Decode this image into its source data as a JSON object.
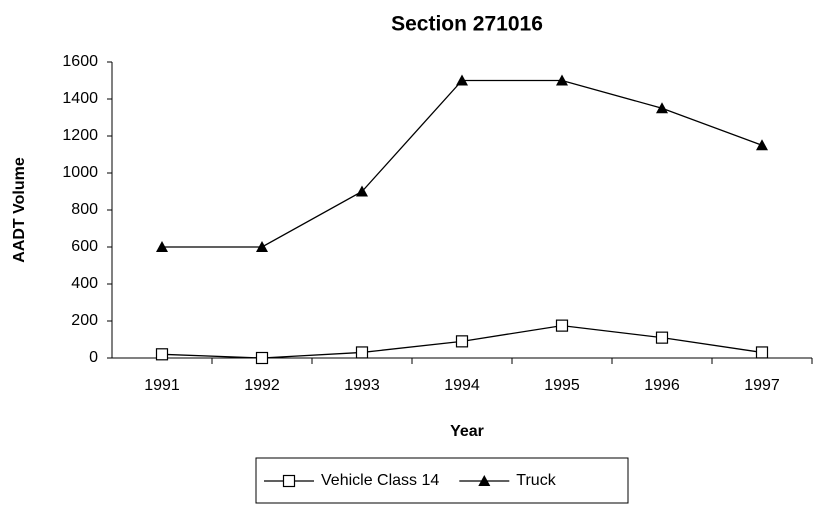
{
  "chart_data": {
    "type": "line",
    "title": "Section 271016",
    "x_label": "Year",
    "y_label": "AADT Volume",
    "categories": [
      "1991",
      "1992",
      "1993",
      "1994",
      "1995",
      "1996",
      "1997"
    ],
    "series": [
      {
        "name": "Vehicle Class 14",
        "color": "#000000",
        "marker": "square",
        "values": [
          20,
          0,
          30,
          90,
          175,
          110,
          30
        ]
      },
      {
        "name": "Truck",
        "color": "#000000",
        "marker": "triangle",
        "values": [
          600,
          600,
          900,
          1500,
          1500,
          1350,
          1150
        ]
      }
    ],
    "ylim": [
      0,
      1600
    ],
    "yticks": [
      0,
      200,
      400,
      600,
      800,
      1000,
      1200,
      1400,
      1600
    ],
    "grid": false,
    "legend": "bottom"
  }
}
